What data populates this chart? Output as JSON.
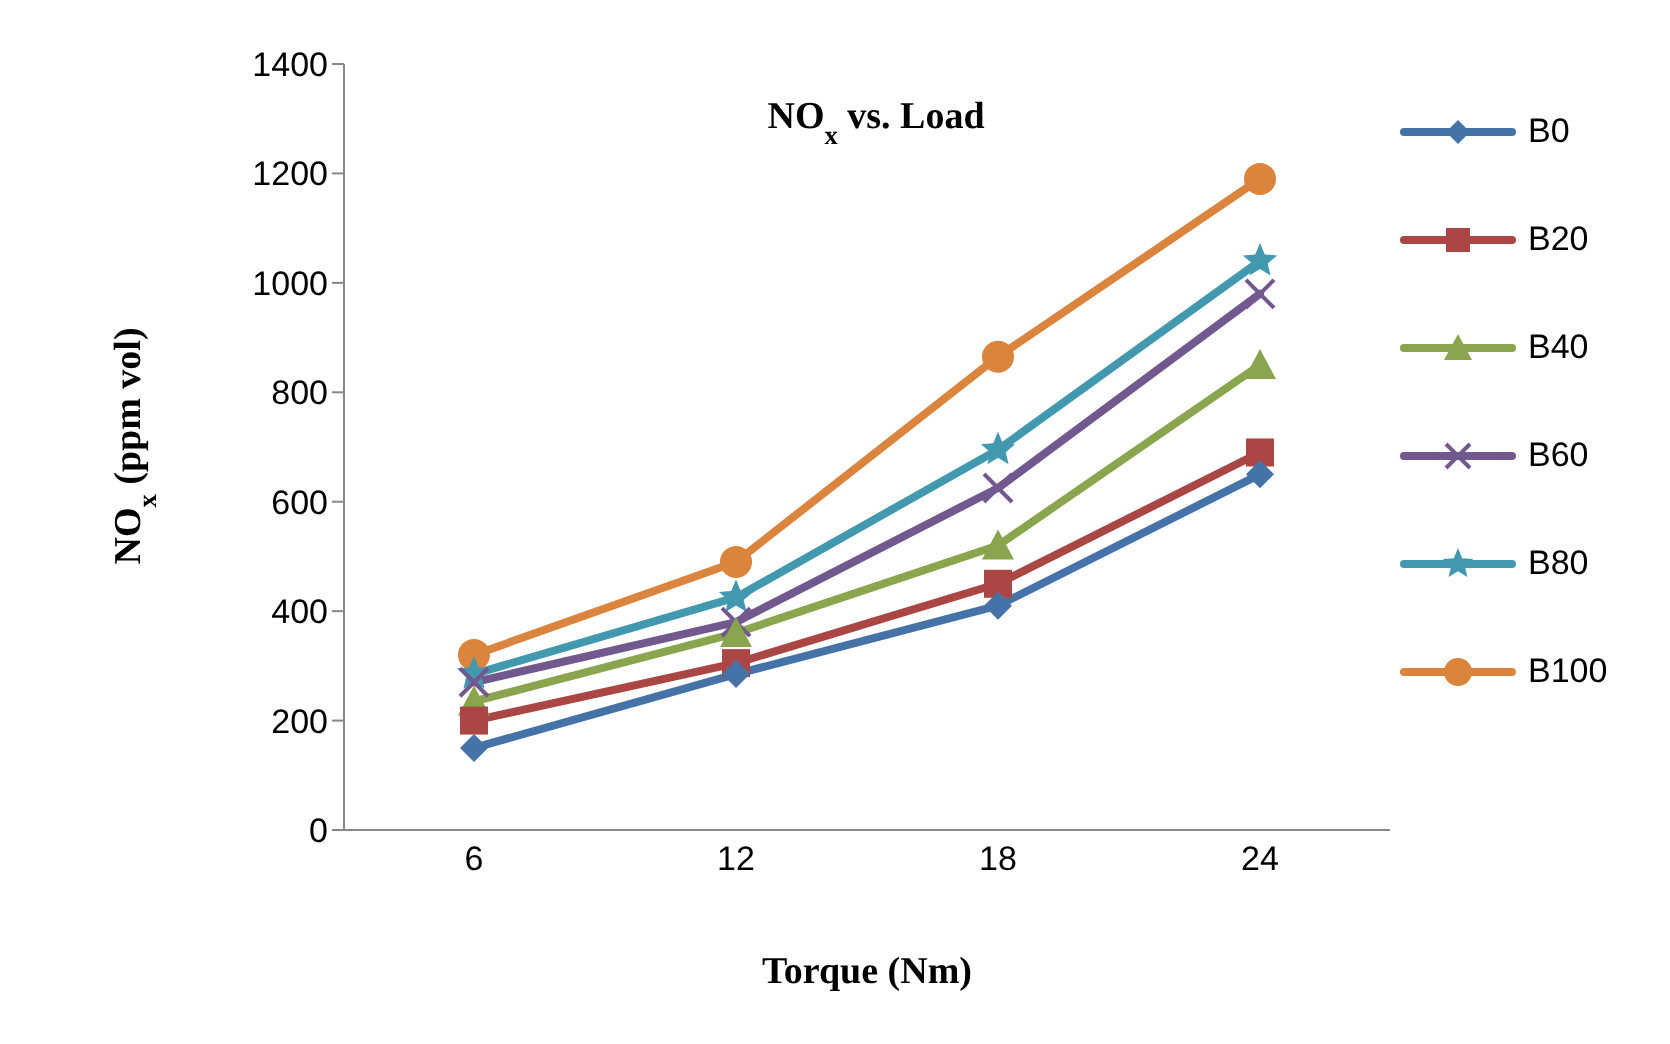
{
  "chart_data": {
    "type": "line",
    "title": "NO$_{x}$ vs. Load",
    "xlabel": "Torque (Nm)",
    "ylabel": "NO$_{x}$ (ppm vol)",
    "categories": [
      "6",
      "12",
      "18",
      "24"
    ],
    "ylim": [
      0,
      1400
    ],
    "yticks": [
      0,
      200,
      400,
      600,
      800,
      1000,
      1200,
      1400
    ],
    "grid": false,
    "legend": "right",
    "line_style": "solid",
    "series": [
      {
        "name": "B0",
        "color": "#4572a7",
        "marker": "diamond",
        "values": [
          150,
          285,
          410,
          650
        ]
      },
      {
        "name": "B20",
        "color": "#aa4643",
        "marker": "square",
        "values": [
          200,
          305,
          450,
          690
        ]
      },
      {
        "name": "B40",
        "color": "#89a54e",
        "marker": "triangle",
        "values": [
          235,
          360,
          520,
          850
        ]
      },
      {
        "name": "B60",
        "color": "#71588f",
        "marker": "cross",
        "values": [
          270,
          380,
          625,
          980
        ]
      },
      {
        "name": "B80",
        "color": "#4198af",
        "marker": "star",
        "values": [
          285,
          425,
          695,
          1040
        ]
      },
      {
        "name": "B100",
        "color": "#db843d",
        "marker": "circle",
        "values": [
          320,
          490,
          865,
          1190
        ]
      }
    ]
  }
}
